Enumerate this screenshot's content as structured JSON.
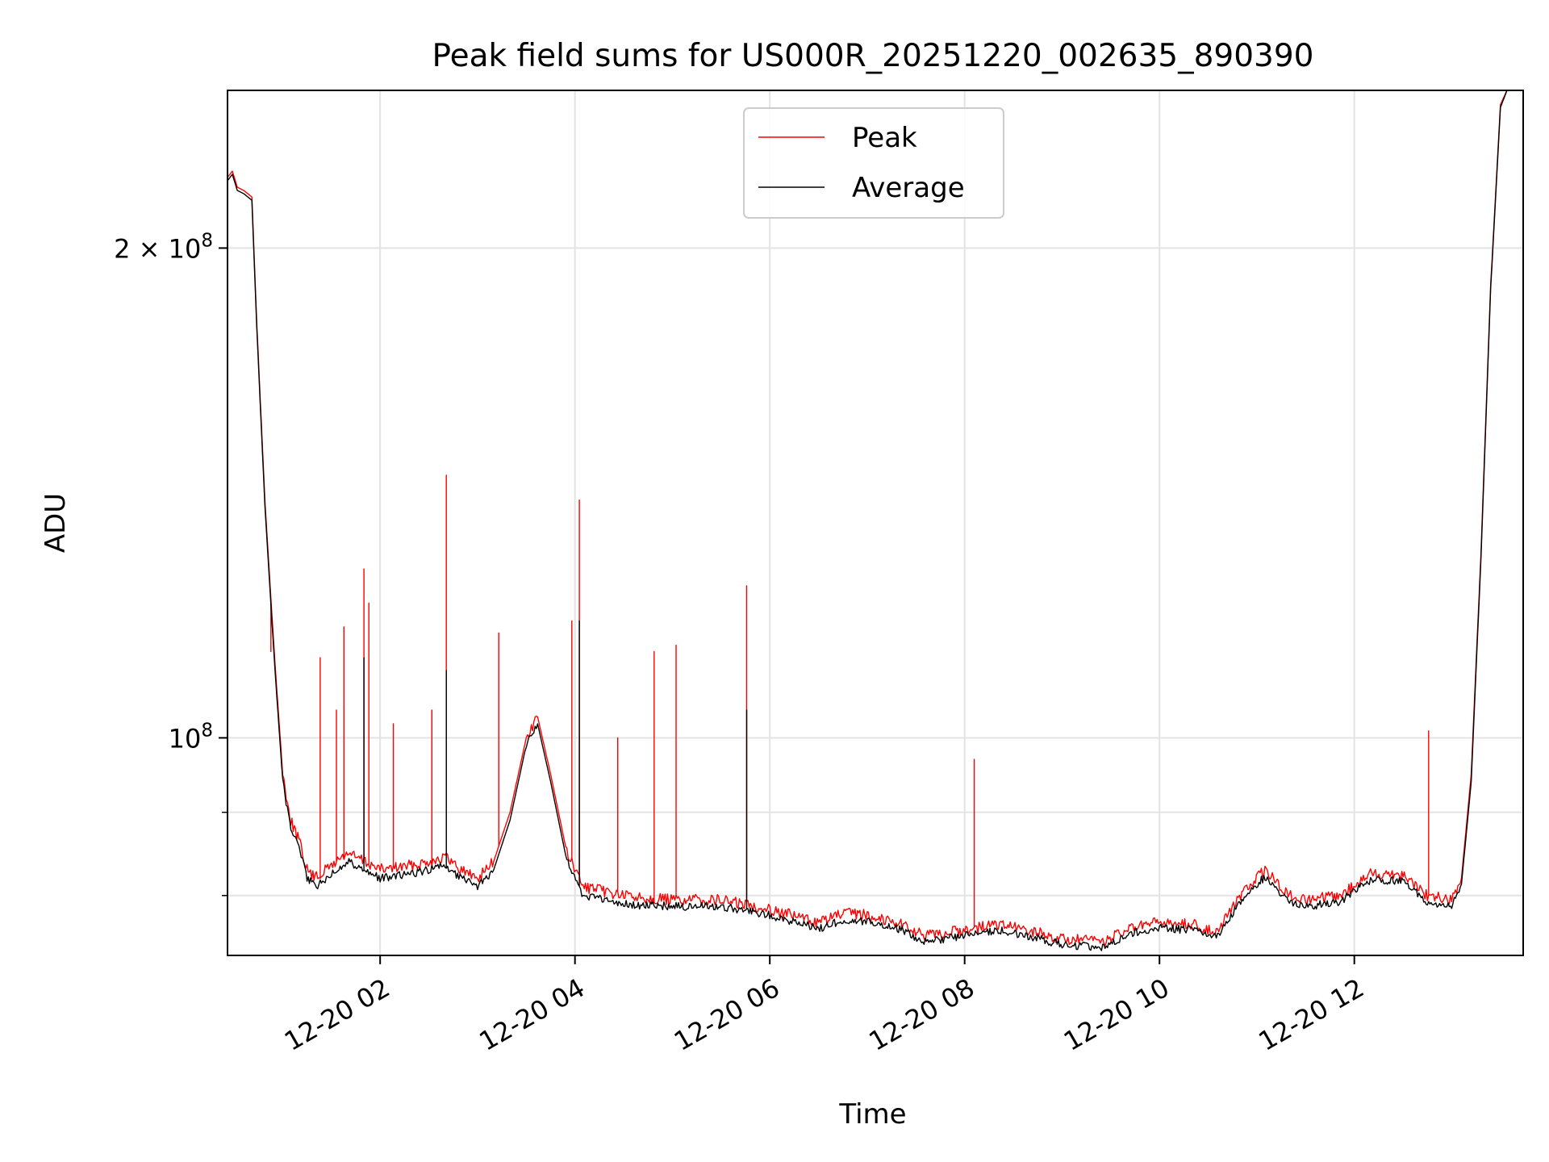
{
  "chart_data": {
    "type": "line",
    "title": "Peak field sums for US000R_20251220_002635_890390",
    "xlabel": "Time",
    "ylabel": "ADU",
    "x_ticks": [
      {
        "t": "2025-12-20T02:00",
        "label": "12-20 02"
      },
      {
        "t": "2025-12-20T04:00",
        "label": "12-20 04"
      },
      {
        "t": "2025-12-20T06:00",
        "label": "12-20 06"
      },
      {
        "t": "2025-12-20T08:00",
        "label": "12-20 08"
      },
      {
        "t": "2025-12-20T10:00",
        "label": "12-20 10"
      },
      {
        "t": "2025-12-20T12:00",
        "label": "12-20 12"
      }
    ],
    "y_major_ticks": [
      {
        "value": 100000000,
        "base": "10",
        "exp": "8",
        "coef": ""
      },
      {
        "value": 200000000,
        "base": "10",
        "exp": "8",
        "coef": "2 × "
      }
    ],
    "y_minor_ticks": [
      90000000,
      80000000
    ],
    "xlim": [
      "2025-12-20T00:26",
      "2025-12-20T13:44"
    ],
    "ylim": [
      73500000,
      250000000
    ],
    "yscale": "log",
    "grid": true,
    "legend_position": "upper center",
    "series": [
      {
        "name": "Peak",
        "color": "#ff0000",
        "points": [
          [
            "2025-12-20T00:26",
            221000000
          ],
          [
            "2025-12-20T00:29",
            223000000
          ],
          [
            "2025-12-20T00:32",
            218000000
          ],
          [
            "2025-12-20T00:36",
            217000000
          ],
          [
            "2025-12-20T00:41",
            215000000
          ],
          [
            "2025-12-20T00:44",
            180000000
          ],
          [
            "2025-12-20T00:49",
            140000000
          ],
          [
            "2025-12-20T00:55",
            112000000
          ],
          [
            "2025-12-20T01:00",
            95000000
          ],
          [
            "2025-12-20T01:05",
            89000000
          ],
          [
            "2025-12-20T01:10",
            86500000
          ],
          [
            "2025-12-20T01:15",
            83000000
          ],
          [
            "2025-12-20T01:20",
            82000000
          ],
          [
            "2025-12-20T01:30",
            83500000
          ],
          [
            "2025-12-20T01:40",
            85000000
          ],
          [
            "2025-12-20T01:50",
            84000000
          ],
          [
            "2025-12-20T02:00",
            83000000
          ],
          [
            "2025-12-20T02:20",
            83500000
          ],
          [
            "2025-12-20T02:40",
            84500000
          ],
          [
            "2025-12-20T02:50",
            83000000
          ],
          [
            "2025-12-20T03:00",
            82000000
          ],
          [
            "2025-12-20T03:10",
            84000000
          ],
          [
            "2025-12-20T03:20",
            90000000
          ],
          [
            "2025-12-20T03:30",
            100000000
          ],
          [
            "2025-12-20T03:37",
            103000000
          ],
          [
            "2025-12-20T03:45",
            95000000
          ],
          [
            "2025-12-20T03:55",
            85000000
          ],
          [
            "2025-12-20T04:05",
            81000000
          ],
          [
            "2025-12-20T04:30",
            80000000
          ],
          [
            "2025-12-20T05:00",
            79500000
          ],
          [
            "2025-12-20T05:30",
            79500000
          ],
          [
            "2025-12-20T06:00",
            78500000
          ],
          [
            "2025-12-20T06:30",
            77000000
          ],
          [
            "2025-12-20T06:45",
            78000000
          ],
          [
            "2025-12-20T07:00",
            77800000
          ],
          [
            "2025-12-20T07:20",
            77000000
          ],
          [
            "2025-12-20T07:35",
            75500000
          ],
          [
            "2025-12-20T08:00",
            76200000
          ],
          [
            "2025-12-20T08:20",
            76800000
          ],
          [
            "2025-12-20T08:45",
            75900000
          ],
          [
            "2025-12-20T09:00",
            75200000
          ],
          [
            "2025-12-20T09:25",
            75000000
          ],
          [
            "2025-12-20T09:45",
            76500000
          ],
          [
            "2025-12-20T10:00",
            77000000
          ],
          [
            "2025-12-20T10:20",
            76800000
          ],
          [
            "2025-12-20T10:35",
            76000000
          ],
          [
            "2025-12-20T10:50",
            80000000
          ],
          [
            "2025-12-20T11:05",
            83000000
          ],
          [
            "2025-12-20T11:20",
            80000000
          ],
          [
            "2025-12-20T11:30",
            79500000
          ],
          [
            "2025-12-20T11:50",
            79900000
          ],
          [
            "2025-12-20T12:10",
            82500000
          ],
          [
            "2025-12-20T12:30",
            82500000
          ],
          [
            "2025-12-20T12:45",
            80000000
          ],
          [
            "2025-12-20T13:00",
            79500000
          ],
          [
            "2025-12-20T13:06",
            82000000
          ],
          [
            "2025-12-20T13:12",
            95000000
          ],
          [
            "2025-12-20T13:18",
            130000000
          ],
          [
            "2025-12-20T13:24",
            190000000
          ],
          [
            "2025-12-20T13:30",
            245000000
          ],
          [
            "2025-12-20T13:34",
            250000000
          ],
          [
            "2025-12-20T13:44",
            250000000
          ]
        ],
        "spikes": [
          [
            "2025-12-20T00:53",
            113000000
          ],
          [
            "2025-12-20T01:23",
            112000000
          ],
          [
            "2025-12-20T01:33",
            104000000
          ],
          [
            "2025-12-20T01:38",
            117000000
          ],
          [
            "2025-12-20T01:50",
            127000000
          ],
          [
            "2025-12-20T01:53",
            121000000
          ],
          [
            "2025-12-20T02:08",
            102000000
          ],
          [
            "2025-12-20T02:32",
            104000000
          ],
          [
            "2025-12-20T02:41",
            145000000
          ],
          [
            "2025-12-20T03:13",
            116000000
          ],
          [
            "2025-12-20T03:58",
            118000000
          ],
          [
            "2025-12-20T04:03",
            140000000
          ],
          [
            "2025-12-20T04:26",
            100000000
          ],
          [
            "2025-12-20T04:49",
            113000000
          ],
          [
            "2025-12-20T05:02",
            114000000
          ],
          [
            "2025-12-20T05:46",
            124000000
          ],
          [
            "2025-12-20T08:06",
            97000000
          ],
          [
            "2025-12-20T12:46",
            101000000
          ]
        ]
      },
      {
        "name": "Average",
        "color": "#000000",
        "points": [
          [
            "2025-12-20T00:26",
            220000000
          ],
          [
            "2025-12-20T00:29",
            222000000
          ],
          [
            "2025-12-20T00:32",
            217000000
          ],
          [
            "2025-12-20T00:36",
            216000000
          ],
          [
            "2025-12-20T00:41",
            214000000
          ],
          [
            "2025-12-20T00:44",
            179000000
          ],
          [
            "2025-12-20T00:49",
            139000000
          ],
          [
            "2025-12-20T00:55",
            111000000
          ],
          [
            "2025-12-20T01:00",
            94000000
          ],
          [
            "2025-12-20T01:05",
            88000000
          ],
          [
            "2025-12-20T01:10",
            85500000
          ],
          [
            "2025-12-20T01:15",
            82000000
          ],
          [
            "2025-12-20T01:20",
            81000000
          ],
          [
            "2025-12-20T01:30",
            82500000
          ],
          [
            "2025-12-20T01:40",
            84000000
          ],
          [
            "2025-12-20T01:50",
            83000000
          ],
          [
            "2025-12-20T02:00",
            82000000
          ],
          [
            "2025-12-20T02:20",
            82500000
          ],
          [
            "2025-12-20T02:40",
            83500000
          ],
          [
            "2025-12-20T02:50",
            82000000
          ],
          [
            "2025-12-20T03:00",
            81000000
          ],
          [
            "2025-12-20T03:10",
            83000000
          ],
          [
            "2025-12-20T03:20",
            89000000
          ],
          [
            "2025-12-20T03:30",
            99000000
          ],
          [
            "2025-12-20T03:37",
            102000000
          ],
          [
            "2025-12-20T03:45",
            94000000
          ],
          [
            "2025-12-20T03:55",
            84000000
          ],
          [
            "2025-12-20T04:05",
            80000000
          ],
          [
            "2025-12-20T04:30",
            79000000
          ],
          [
            "2025-12-20T05:00",
            78800000
          ],
          [
            "2025-12-20T05:30",
            78800000
          ],
          [
            "2025-12-20T06:00",
            77800000
          ],
          [
            "2025-12-20T06:30",
            76300000
          ],
          [
            "2025-12-20T06:45",
            77300000
          ],
          [
            "2025-12-20T07:00",
            77100000
          ],
          [
            "2025-12-20T07:20",
            76300000
          ],
          [
            "2025-12-20T07:35",
            74900000
          ],
          [
            "2025-12-20T08:00",
            75600000
          ],
          [
            "2025-12-20T08:20",
            76200000
          ],
          [
            "2025-12-20T08:45",
            75300000
          ],
          [
            "2025-12-20T09:00",
            74600000
          ],
          [
            "2025-12-20T09:25",
            74400000
          ],
          [
            "2025-12-20T09:45",
            75900000
          ],
          [
            "2025-12-20T10:00",
            76400000
          ],
          [
            "2025-12-20T10:20",
            76200000
          ],
          [
            "2025-12-20T10:35",
            75400000
          ],
          [
            "2025-12-20T10:50",
            79300000
          ],
          [
            "2025-12-20T11:05",
            82200000
          ],
          [
            "2025-12-20T11:20",
            79300000
          ],
          [
            "2025-12-20T11:30",
            78800000
          ],
          [
            "2025-12-20T11:50",
            79200000
          ],
          [
            "2025-12-20T12:10",
            81700000
          ],
          [
            "2025-12-20T12:30",
            81700000
          ],
          [
            "2025-12-20T12:45",
            79300000
          ],
          [
            "2025-12-20T13:00",
            78800000
          ],
          [
            "2025-12-20T13:06",
            81300000
          ],
          [
            "2025-12-20T13:12",
            94000000
          ],
          [
            "2025-12-20T13:18",
            129000000
          ],
          [
            "2025-12-20T13:24",
            189000000
          ],
          [
            "2025-12-20T13:30",
            244000000
          ],
          [
            "2025-12-20T13:34",
            250000000
          ],
          [
            "2025-12-20T13:44",
            250000000
          ]
        ],
        "spikes": [
          [
            "2025-12-20T01:50",
            112000000
          ],
          [
            "2025-12-20T02:41",
            110000000
          ],
          [
            "2025-12-20T04:03",
            118000000
          ],
          [
            "2025-12-20T05:46",
            104000000
          ]
        ]
      }
    ]
  }
}
